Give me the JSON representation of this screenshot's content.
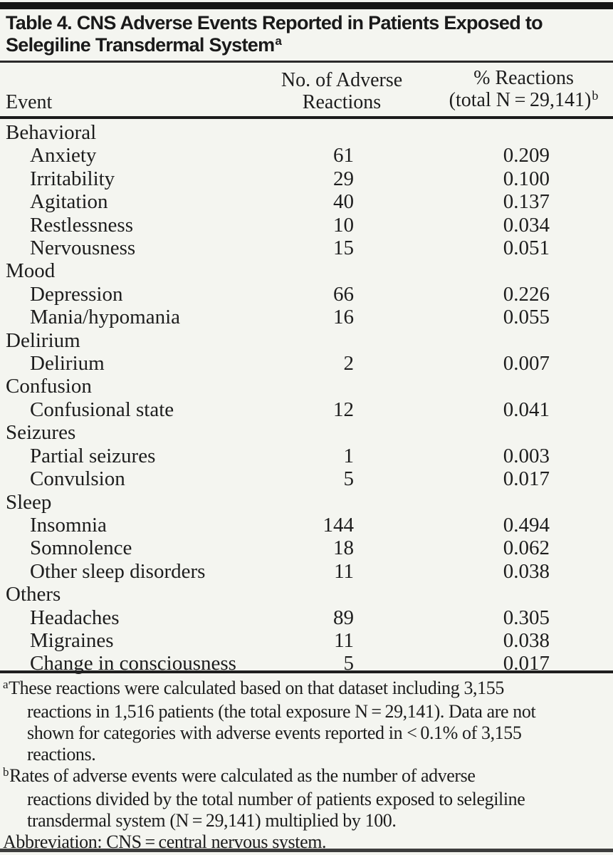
{
  "page_background": "#f4f5f0",
  "accent_black": "#161616",
  "table": {
    "title_line1": "Table 4. CNS Adverse Events Reported in Patients Exposed to",
    "title_line2": "Selegiline Transdermal System",
    "title_superscript": "a",
    "header": {
      "event": "Event",
      "count_line1": "No. of Adverse",
      "count_line2": "Reactions",
      "pct_line1": "% Reactions",
      "pct_line2": "(total N = 29,141)",
      "pct_superscript": "b"
    },
    "rows": [
      {
        "label": "Behavioral",
        "indent": false,
        "count": "",
        "pct": ""
      },
      {
        "label": "Anxiety",
        "indent": true,
        "count": "61",
        "pct": "0.209"
      },
      {
        "label": "Irritability",
        "indent": true,
        "count": "29",
        "pct": "0.100"
      },
      {
        "label": "Agitation",
        "indent": true,
        "count": "40",
        "pct": "0.137"
      },
      {
        "label": "Restlessness",
        "indent": true,
        "count": "10",
        "pct": "0.034"
      },
      {
        "label": "Nervousness",
        "indent": true,
        "count": "15",
        "pct": "0.051"
      },
      {
        "label": "Mood",
        "indent": false,
        "count": "",
        "pct": ""
      },
      {
        "label": "Depression",
        "indent": true,
        "count": "66",
        "pct": "0.226"
      },
      {
        "label": "Mania/hypomania",
        "indent": true,
        "count": "16",
        "pct": "0.055"
      },
      {
        "label": "Delirium",
        "indent": false,
        "count": "",
        "pct": ""
      },
      {
        "label": "Delirium",
        "indent": true,
        "count": "2",
        "pct": "0.007"
      },
      {
        "label": "Confusion",
        "indent": false,
        "count": "",
        "pct": ""
      },
      {
        "label": "Confusional state",
        "indent": true,
        "count": "12",
        "pct": "0.041"
      },
      {
        "label": "Seizures",
        "indent": false,
        "count": "",
        "pct": ""
      },
      {
        "label": "Partial seizures",
        "indent": true,
        "count": "1",
        "pct": "0.003"
      },
      {
        "label": "Convulsion",
        "indent": true,
        "count": "5",
        "pct": "0.017"
      },
      {
        "label": "Sleep",
        "indent": false,
        "count": "",
        "pct": ""
      },
      {
        "label": "Insomnia",
        "indent": true,
        "count": "144",
        "pct": "0.494"
      },
      {
        "label": "Somnolence",
        "indent": true,
        "count": "18",
        "pct": "0.062"
      },
      {
        "label": "Other sleep disorders",
        "indent": true,
        "count": "11",
        "pct": "0.038"
      },
      {
        "label": "Others",
        "indent": false,
        "count": "",
        "pct": ""
      },
      {
        "label": "Headaches",
        "indent": true,
        "count": "89",
        "pct": "0.305"
      },
      {
        "label": "Migraines",
        "indent": true,
        "count": "11",
        "pct": "0.038"
      },
      {
        "label": "Change in consciousness",
        "indent": true,
        "count": "5",
        "pct": "0.017"
      }
    ],
    "footnotes": [
      {
        "marker": "a",
        "lines": [
          "These reactions were calculated based on that dataset including 3,155",
          "reactions in 1,516 patients (the total exposure N = 29,141). Data are not",
          "shown for categories with adverse events reported in < 0.1% of 3,155",
          "reactions."
        ]
      },
      {
        "marker": "b",
        "lines": [
          "Rates of adverse events were calculated as the number of adverse",
          "reactions divided by the total number of patients exposed to selegiline",
          "transdermal system (N = 29,141) multiplied by 100."
        ]
      },
      {
        "marker": "",
        "lines": [
          "Abbreviation: CNS = central nervous system."
        ]
      }
    ]
  },
  "chart_data": {
    "type": "table",
    "title": "Table 4. CNS Adverse Events Reported in Patients Exposed to Selegiline Transdermal System",
    "columns": [
      "Event",
      "No. of Adverse Reactions",
      "% Reactions (total N = 29,141)"
    ],
    "categories": [
      "Behavioral",
      "Mood",
      "Delirium",
      "Confusion",
      "Seizures",
      "Sleep",
      "Others"
    ],
    "series": [
      {
        "category": "Behavioral",
        "event": "Anxiety",
        "count": 61,
        "pct": 0.209
      },
      {
        "category": "Behavioral",
        "event": "Irritability",
        "count": 29,
        "pct": 0.1
      },
      {
        "category": "Behavioral",
        "event": "Agitation",
        "count": 40,
        "pct": 0.137
      },
      {
        "category": "Behavioral",
        "event": "Restlessness",
        "count": 10,
        "pct": 0.034
      },
      {
        "category": "Behavioral",
        "event": "Nervousness",
        "count": 15,
        "pct": 0.051
      },
      {
        "category": "Mood",
        "event": "Depression",
        "count": 66,
        "pct": 0.226
      },
      {
        "category": "Mood",
        "event": "Mania/hypomania",
        "count": 16,
        "pct": 0.055
      },
      {
        "category": "Delirium",
        "event": "Delirium",
        "count": 2,
        "pct": 0.007
      },
      {
        "category": "Confusion",
        "event": "Confusional state",
        "count": 12,
        "pct": 0.041
      },
      {
        "category": "Seizures",
        "event": "Partial seizures",
        "count": 1,
        "pct": 0.003
      },
      {
        "category": "Seizures",
        "event": "Convulsion",
        "count": 5,
        "pct": 0.017
      },
      {
        "category": "Sleep",
        "event": "Insomnia",
        "count": 144,
        "pct": 0.494
      },
      {
        "category": "Sleep",
        "event": "Somnolence",
        "count": 18,
        "pct": 0.062
      },
      {
        "category": "Sleep",
        "event": "Other sleep disorders",
        "count": 11,
        "pct": 0.038
      },
      {
        "category": "Others",
        "event": "Headaches",
        "count": 89,
        "pct": 0.305
      },
      {
        "category": "Others",
        "event": "Migraines",
        "count": 11,
        "pct": 0.038
      },
      {
        "category": "Others",
        "event": "Change in consciousness",
        "count": 5,
        "pct": 0.017
      }
    ]
  }
}
